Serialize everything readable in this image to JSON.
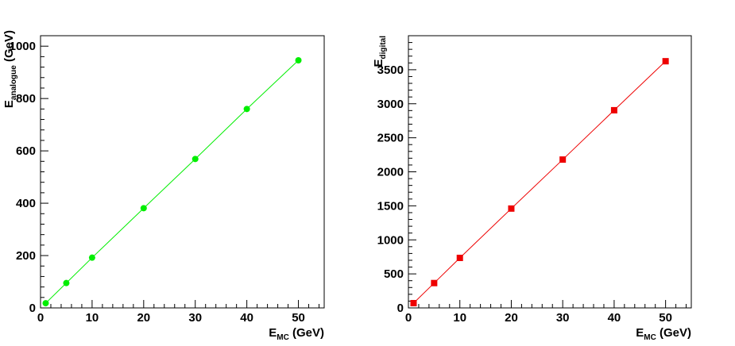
{
  "chart_data": [
    {
      "type": "line",
      "series_marker": "circle",
      "color": "#00ee00",
      "x": [
        1,
        5,
        10,
        20,
        30,
        40,
        50
      ],
      "series": [
        {
          "values": [
            18,
            95,
            192,
            381,
            569,
            760,
            946
          ]
        }
      ],
      "xlabel": {
        "main": "E",
        "sub": "MC",
        "unit": " (GeV)"
      },
      "ylabel": {
        "main": "E",
        "sub": "analogue",
        "unit": " (GeV)"
      },
      "xlim": [
        0,
        55
      ],
      "ylim": [
        0,
        1040
      ],
      "xticks": [
        0,
        10,
        20,
        30,
        40,
        50
      ],
      "yticks": [
        0,
        200,
        400,
        600,
        800,
        1000
      ],
      "grid": false,
      "legend": "none"
    },
    {
      "type": "line",
      "series_marker": "square",
      "color": "#ee0000",
      "x": [
        1,
        5,
        10,
        20,
        30,
        40,
        50
      ],
      "series": [
        {
          "values": [
            70,
            365,
            735,
            1460,
            2180,
            2905,
            3625
          ]
        }
      ],
      "xlabel": {
        "main": "E",
        "sub": "MC",
        "unit": " (GeV)"
      },
      "ylabel": {
        "main": "E",
        "sub": "digital",
        "unit": ""
      },
      "xlim": [
        0,
        55
      ],
      "ylim": [
        0,
        4000
      ],
      "xticks": [
        0,
        10,
        20,
        30,
        40,
        50
      ],
      "yticks": [
        0,
        500,
        1000,
        1500,
        2000,
        2500,
        3000,
        3500
      ],
      "grid": false,
      "legend": "none"
    }
  ]
}
